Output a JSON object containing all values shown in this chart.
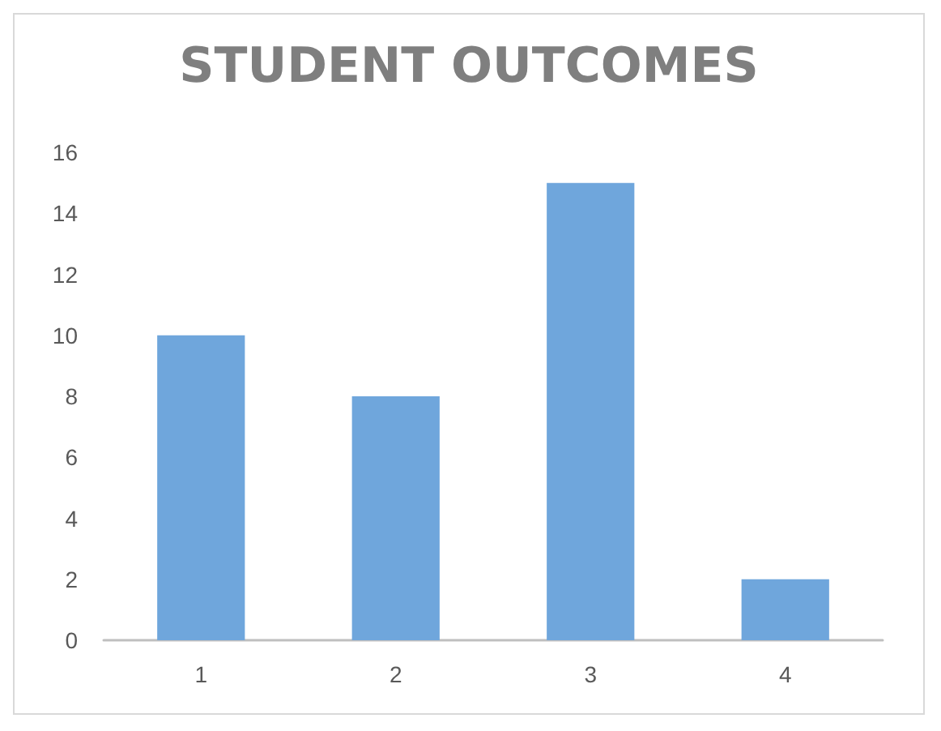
{
  "chart_data": {
    "type": "bar",
    "title": "STUDENT OUTCOMES",
    "categories": [
      "1",
      "2",
      "3",
      "4"
    ],
    "values": [
      10,
      8,
      15,
      2
    ],
    "color": "#6fa6dc",
    "ylim": [
      0,
      16
    ],
    "yticks": [
      0,
      2,
      4,
      6,
      8,
      10,
      12,
      14,
      16
    ]
  }
}
